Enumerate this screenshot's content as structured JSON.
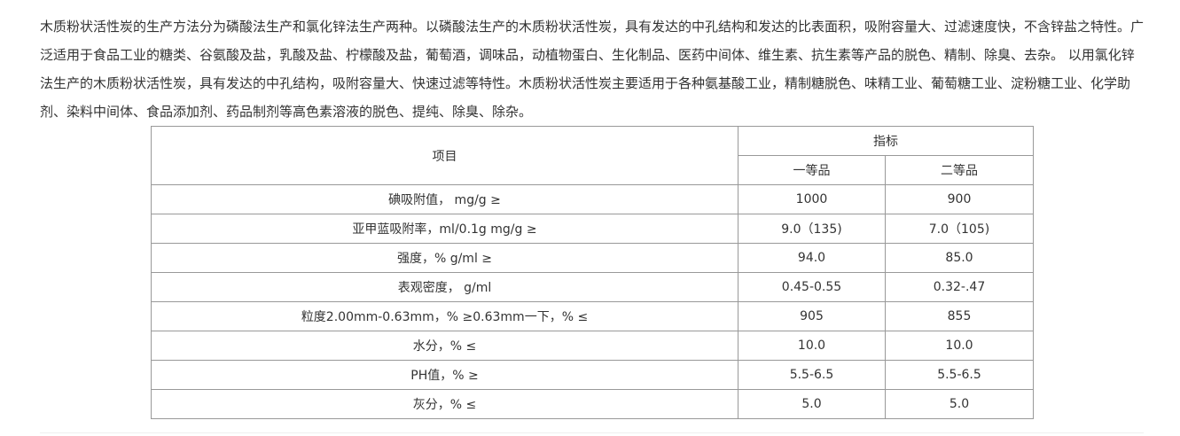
{
  "paragraph": "木质粉状活性炭的生产方法分为磷酸法生产和氯化锌法生产两种。以磷酸法生产的木质粉状活性炭，具有发达的中孔结构和发达的比表面积，吸附容量大、过滤速度快，不含锌盐之特性。广泛适用于食品工业的糖类、谷氨酸及盐，乳酸及盐、柠檬酸及盐，葡萄酒，调味品，动植物蛋白、生化制品、医药中间体、维生素、抗生素等产品的脱色、精制、除臭、去杂。 以用氯化锌法生产的木质粉状活性炭，具有发达的中孔结构，吸附容量大、快速过滤等特性。木质粉状活性炭主要适用于各种氨基酸工业，精制糖脱色、味精工业、葡萄糖工业、淀粉糖工业、化学助剂、染料中间体、食品添加剂、药品制剂等高色素溶液的脱色、提纯、除臭、除杂。",
  "table": {
    "header_item": "项目",
    "header_index": "指标",
    "header_grade1": "一等品",
    "header_grade2": "二等品",
    "rows": [
      {
        "item": "碘吸附值， mg/g ≥",
        "g1": "1000",
        "g2": "900"
      },
      {
        "item": "亚甲蓝吸附率，ml/0.1g mg/g ≥",
        "g1": "9.0（135)",
        "g2": "7.0（105)"
      },
      {
        "item": "强度，% g/ml ≥",
        "g1": "94.0",
        "g2": "85.0"
      },
      {
        "item": "表观密度， g/ml",
        "g1": "0.45-0.55",
        "g2": "0.32-.47"
      },
      {
        "item": "粒度2.00mm-0.63mm，% ≥0.63mm一下，% ≤",
        "g1": "905",
        "g2": "855"
      },
      {
        "item": "水分，% ≤",
        "g1": "10.0",
        "g2": "10.0"
      },
      {
        "item": "PH值，% ≥",
        "g1": "5.5-6.5",
        "g2": "5.5-6.5"
      },
      {
        "item": "灰分，% ≤",
        "g1": "5.0",
        "g2": "5.0"
      }
    ]
  }
}
